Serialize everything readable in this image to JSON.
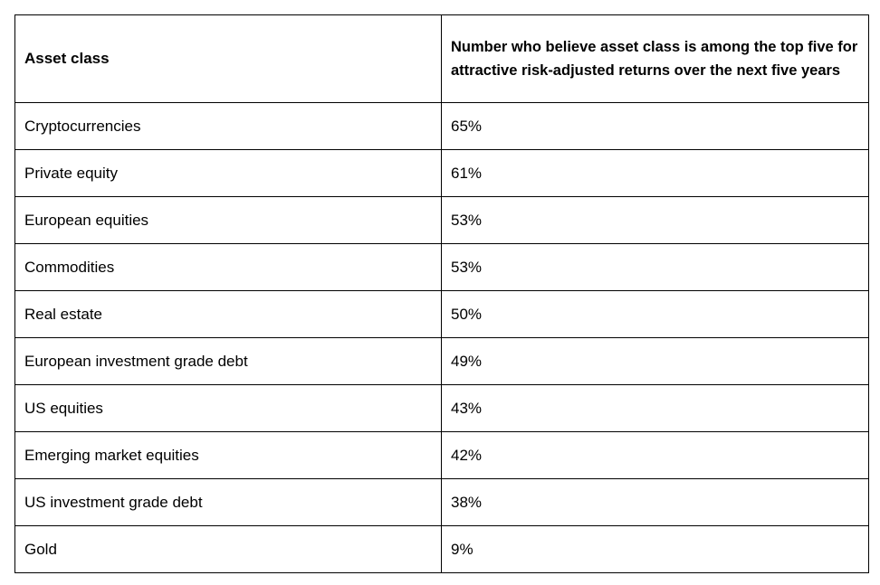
{
  "table": {
    "headers": [
      "Asset class",
      "Number who believe asset class is among the top five for attractive risk-adjusted returns over the next five years"
    ],
    "rows": [
      [
        "Cryptocurrencies",
        "65%"
      ],
      [
        "Private equity",
        "61%"
      ],
      [
        "European equities",
        "53%"
      ],
      [
        "Commodities",
        "53%"
      ],
      [
        "Real estate",
        "50%"
      ],
      [
        "European investment grade debt",
        "49%"
      ],
      [
        "US equities",
        "43%"
      ],
      [
        "Emerging market equities",
        "42%"
      ],
      [
        "US investment grade debt",
        "38%"
      ],
      [
        "Gold",
        "9%"
      ]
    ]
  }
}
